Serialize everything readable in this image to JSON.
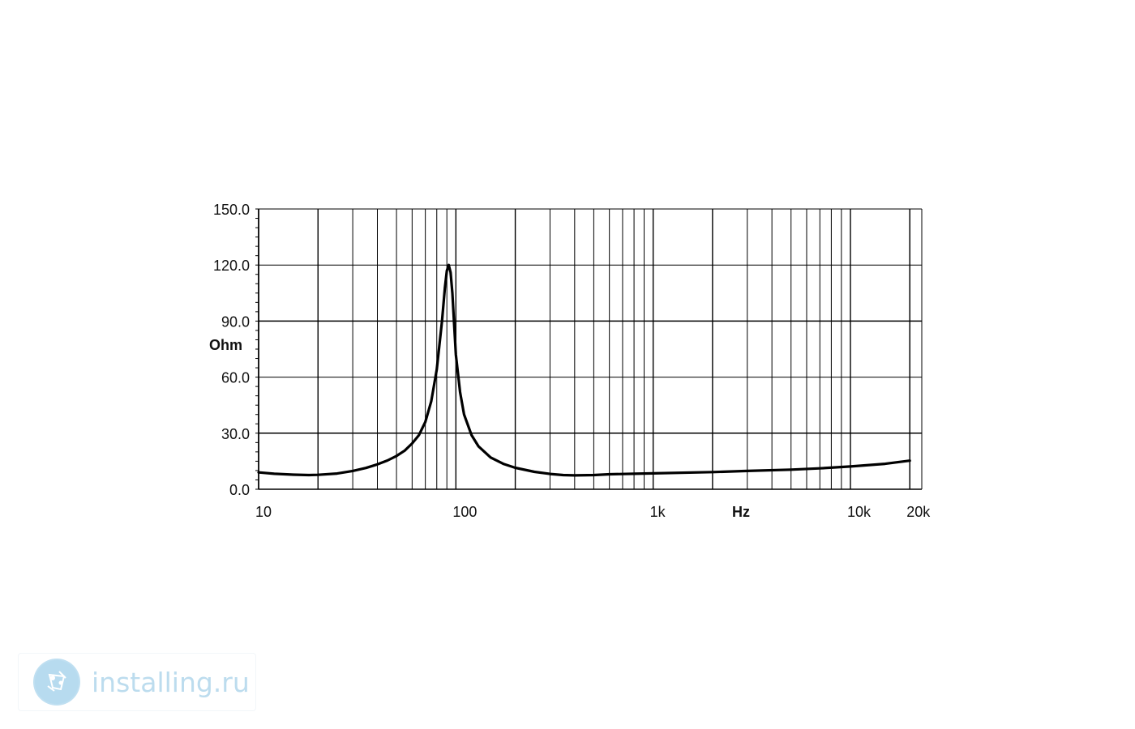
{
  "chart_data": {
    "type": "line",
    "ylabel": "Ohm",
    "xlabel": "Hz",
    "xscale": "log",
    "xlim": [
      10,
      20000
    ],
    "ylim": [
      0,
      150
    ],
    "y_ticks": [
      {
        "value": 0,
        "label": "0.0"
      },
      {
        "value": 30,
        "label": "30.0"
      },
      {
        "value": 60,
        "label": "60.0"
      },
      {
        "value": 90,
        "label": "90.0"
      },
      {
        "value": 120,
        "label": "120.0"
      },
      {
        "value": 150,
        "label": "150.0"
      }
    ],
    "x_ticks": [
      {
        "value": 10,
        "label": "10"
      },
      {
        "value": 100,
        "label": "100"
      },
      {
        "value": 1000,
        "label": "1k"
      },
      {
        "value": 10000,
        "label": "10k"
      },
      {
        "value": 20000,
        "label": "20k"
      }
    ],
    "grid": true,
    "series": [
      {
        "color": "#000000",
        "points": [
          [
            10,
            9.0
          ],
          [
            12,
            8.3
          ],
          [
            15,
            7.8
          ],
          [
            18,
            7.6
          ],
          [
            20,
            7.7
          ],
          [
            25,
            8.4
          ],
          [
            30,
            9.8
          ],
          [
            35,
            11.4
          ],
          [
            40,
            13.3
          ],
          [
            45,
            15.4
          ],
          [
            50,
            17.8
          ],
          [
            55,
            20.7
          ],
          [
            60,
            24.5
          ],
          [
            65,
            29.0
          ],
          [
            70,
            36.0
          ],
          [
            75,
            47.0
          ],
          [
            80,
            64.0
          ],
          [
            85,
            90.0
          ],
          [
            88,
            108.0
          ],
          [
            90,
            117.0
          ],
          [
            92,
            120.0
          ],
          [
            94,
            116.0
          ],
          [
            96,
            105.0
          ],
          [
            98,
            88.0
          ],
          [
            100,
            72.0
          ],
          [
            105,
            52.0
          ],
          [
            110,
            40.0
          ],
          [
            120,
            29.0
          ],
          [
            130,
            23.0
          ],
          [
            150,
            17.0
          ],
          [
            175,
            13.5
          ],
          [
            200,
            11.5
          ],
          [
            250,
            9.3
          ],
          [
            300,
            8.2
          ],
          [
            350,
            7.6
          ],
          [
            400,
            7.4
          ],
          [
            500,
            7.6
          ],
          [
            600,
            8.0
          ],
          [
            800,
            8.3
          ],
          [
            1000,
            8.5
          ],
          [
            2000,
            9.2
          ],
          [
            3000,
            9.8
          ],
          [
            5000,
            10.5
          ],
          [
            7000,
            11.2
          ],
          [
            10000,
            12.2
          ],
          [
            15000,
            13.6
          ],
          [
            20000,
            15.3
          ]
        ]
      }
    ]
  },
  "watermark": {
    "text": "installing.ru",
    "color": "#bcdcee"
  }
}
